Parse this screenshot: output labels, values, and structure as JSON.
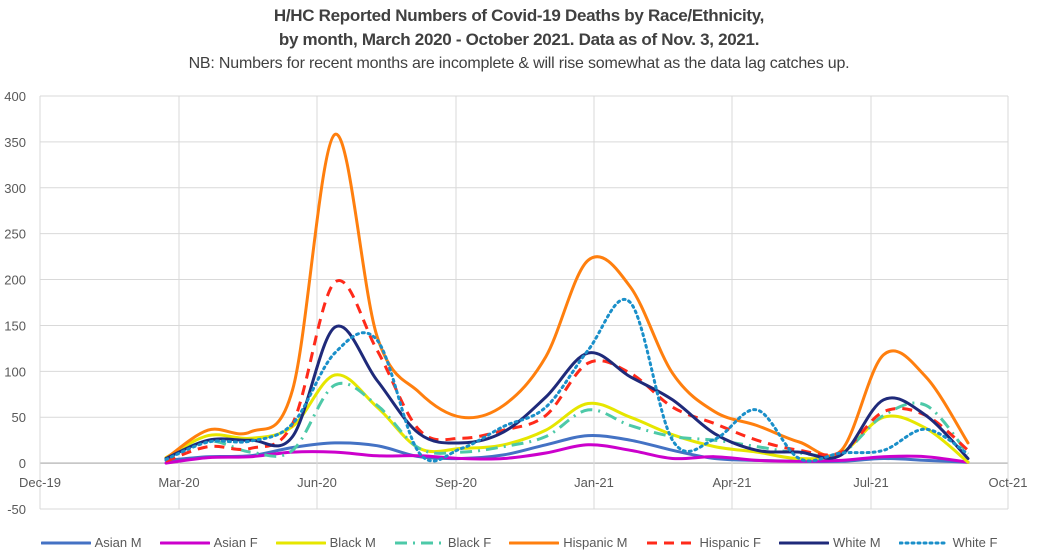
{
  "chart_data": {
    "type": "line",
    "title": "H/HC Reported Numbers of Covid-19 Deaths by Race/Ethnicity,",
    "title_line2": "by month, March 2020 - October 2021. Data as of Nov. 3, 2021.",
    "subtitle": "NB: Numbers for recent months are incomplete & will rise somewhat as the data lag catches up.",
    "xlabel": "",
    "ylabel": "",
    "ylim": [
      -50,
      400
    ],
    "yticks": [
      400,
      350,
      300,
      250,
      200,
      150,
      100,
      50,
      0,
      -50
    ],
    "ytick_labels": [
      "400",
      "350",
      "300",
      "250",
      "200",
      "150",
      "100",
      "50",
      "0",
      "-50"
    ],
    "xtick_labels": [
      "Dec-19",
      "Mar-20",
      "Jun-20",
      "Sep-20",
      "Jan-21",
      "Apr-21",
      "Jul-21",
      "Oct-21"
    ],
    "grid": true,
    "legend_position": "bottom",
    "x": [
      "Mar-20",
      "Apr-20",
      "May-20",
      "Jun-20",
      "Jul-20",
      "Aug-20",
      "Sep-20",
      "Oct-20",
      "Nov-20",
      "Dec-20",
      "Jan-21",
      "Feb-21",
      "Mar-21",
      "Apr-21",
      "May-21",
      "Jun-21",
      "Jul-21",
      "Aug-21",
      "Sep-21",
      "Oct-21"
    ],
    "series": [
      {
        "name": "Asian M",
        "color": "#4472C4",
        "dash": "solid",
        "values": [
          3,
          7,
          8,
          17,
          22,
          19,
          7,
          5,
          9,
          20,
          30,
          25,
          14,
          5,
          3,
          2,
          2,
          5,
          3,
          1
        ]
      },
      {
        "name": "Asian F",
        "color": "#CC00CC",
        "dash": "solid",
        "values": [
          0,
          6,
          7,
          12,
          12,
          8,
          8,
          5,
          5,
          11,
          20,
          14,
          5,
          7,
          3,
          2,
          3,
          7,
          7,
          1
        ]
      },
      {
        "name": "Black M",
        "color": "#E6E600",
        "dash": "solid",
        "values": [
          6,
          30,
          27,
          40,
          96,
          61,
          16,
          16,
          20,
          36,
          65,
          50,
          31,
          18,
          12,
          5,
          11,
          50,
          38,
          1
        ]
      },
      {
        "name": "Black F",
        "color": "#4DC9A8",
        "dash": "dashdot",
        "values": [
          5,
          24,
          12,
          14,
          85,
          63,
          16,
          12,
          18,
          29,
          58,
          41,
          29,
          25,
          18,
          11,
          11,
          52,
          63,
          10
        ]
      },
      {
        "name": "Hispanic M",
        "color": "#FF7F0E",
        "dash": "solid",
        "values": [
          5,
          36,
          34,
          80,
          358,
          138,
          77,
          50,
          63,
          116,
          221,
          192,
          98,
          56,
          41,
          23,
          14,
          118,
          94,
          22
        ]
      },
      {
        "name": "Hispanic F",
        "color": "#FF2A1A",
        "dash": "dash",
        "values": [
          2,
          18,
          16,
          43,
          197,
          123,
          36,
          27,
          36,
          52,
          109,
          98,
          61,
          43,
          25,
          14,
          12,
          56,
          52,
          14
        ]
      },
      {
        "name": "White M",
        "color": "#1F2A7A",
        "dash": "solid",
        "values": [
          5,
          25,
          25,
          29,
          148,
          90,
          32,
          22,
          34,
          72,
          120,
          94,
          69,
          32,
          14,
          12,
          9,
          69,
          52,
          5
        ]
      },
      {
        "name": "White F",
        "color": "#1A8FC9",
        "dash": "dot",
        "values": [
          4,
          23,
          24,
          43,
          120,
          134,
          11,
          16,
          40,
          61,
          123,
          175,
          25,
          26,
          58,
          5,
          11,
          14,
          37,
          10
        ]
      }
    ]
  }
}
